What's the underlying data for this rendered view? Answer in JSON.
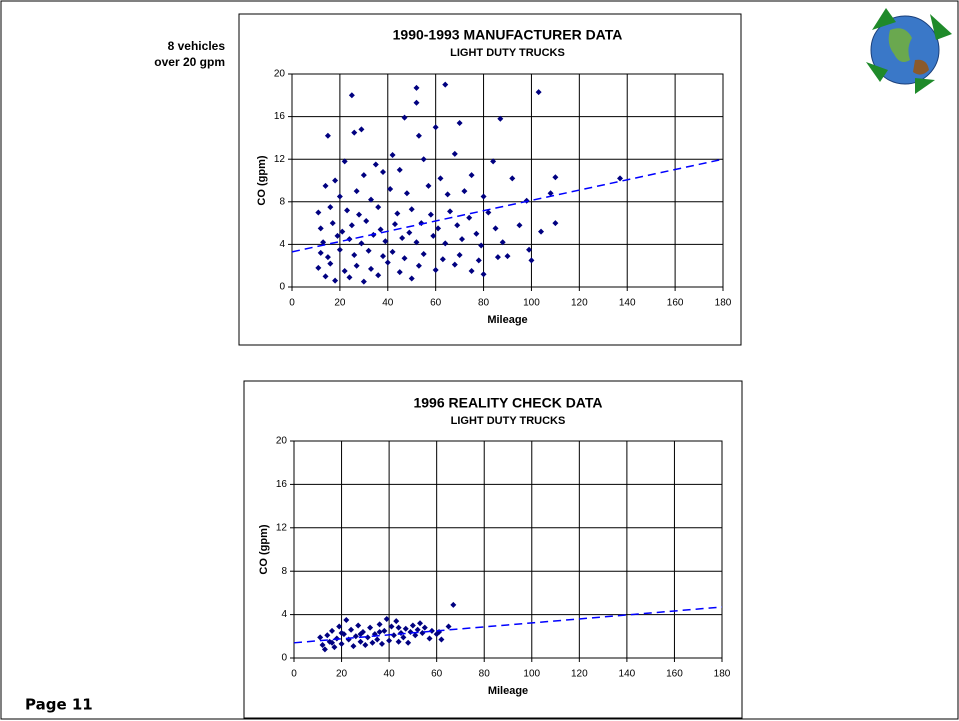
{
  "page": "Page 11",
  "annotation": [
    "8 vehicles",
    "over 20 gpm"
  ],
  "chart_data": [
    {
      "type": "scatter",
      "title": "1990-1993 MANUFACTURER DATA",
      "subtitle": "LIGHT DUTY TRUCKS",
      "x_label": "Mileage",
      "y_label": "CO (gpm)",
      "color": "#000080",
      "grid": true,
      "xlim": [
        0,
        180
      ],
      "ylim": [
        0,
        20
      ],
      "xticks": [
        0,
        20,
        40,
        60,
        80,
        100,
        120,
        140,
        160,
        180
      ],
      "yticks": [
        0,
        4,
        8,
        12,
        16,
        20
      ],
      "x": [
        25,
        52,
        52,
        64,
        103,
        87,
        70,
        47,
        15,
        29,
        60,
        26,
        53,
        42,
        35,
        55,
        68,
        84,
        22,
        45,
        18,
        30,
        38,
        62,
        75,
        92,
        110,
        137,
        108,
        14,
        20,
        27,
        33,
        41,
        48,
        57,
        65,
        72,
        80,
        98,
        11,
        16,
        23,
        28,
        36,
        44,
        50,
        58,
        66,
        74,
        82,
        95,
        104,
        110,
        12,
        17,
        21,
        25,
        31,
        37,
        43,
        49,
        54,
        61,
        69,
        77,
        85,
        13,
        19,
        24,
        29,
        34,
        39,
        46,
        52,
        59,
        64,
        71,
        79,
        88,
        99,
        12,
        15,
        20,
        26,
        32,
        38,
        42,
        47,
        55,
        63,
        70,
        78,
        86,
        100,
        11,
        16,
        22,
        27,
        33,
        40,
        45,
        53,
        60,
        68,
        80,
        14,
        18,
        24,
        30,
        36,
        50,
        75,
        90
      ],
      "y": [
        18,
        18.7,
        17.3,
        19,
        18.3,
        15.8,
        15.4,
        15.9,
        14.2,
        14.8,
        15,
        14.5,
        14.2,
        12.4,
        11.5,
        12,
        12.5,
        11.8,
        11.8,
        11,
        10,
        10.5,
        10.8,
        10.2,
        10.5,
        10.2,
        10.3,
        10.2,
        8.8,
        9.5,
        8.5,
        9,
        8.2,
        9.2,
        8.8,
        9.5,
        8.7,
        9,
        8.5,
        8.1,
        7,
        7.5,
        7.2,
        6.8,
        7.5,
        6.9,
        7.3,
        6.8,
        7.1,
        6.5,
        7,
        5.8,
        5.2,
        6,
        5.5,
        6,
        5.2,
        5.8,
        6.2,
        5.4,
        5.9,
        5.1,
        6,
        5.5,
        5.8,
        5,
        5.5,
        4.2,
        4.8,
        4.5,
        4.1,
        4.9,
        4.3,
        4.6,
        4.2,
        4.8,
        4.1,
        4.5,
        3.9,
        4.2,
        3.5,
        3.2,
        2.8,
        3.5,
        3,
        3.4,
        2.9,
        3.3,
        2.7,
        3.1,
        2.6,
        3,
        2.5,
        2.8,
        2.5,
        1.8,
        2.2,
        1.5,
        2,
        1.7,
        2.3,
        1.4,
        2,
        1.6,
        2.1,
        1.2,
        1,
        0.6,
        0.9,
        0.5,
        1.1,
        0.8,
        1.5,
        2.9
      ],
      "trend": {
        "x": [
          0,
          180
        ],
        "y": [
          3.3,
          12
        ]
      }
    },
    {
      "type": "scatter",
      "title": "1996 REALITY CHECK DATA",
      "subtitle": "LIGHT DUTY TRUCKS",
      "x_label": "Mileage",
      "y_label": "CO (gpm)",
      "color": "#000080",
      "grid": true,
      "xlim": [
        0,
        180
      ],
      "ylim": [
        0,
        20
      ],
      "xticks": [
        0,
        20,
        40,
        60,
        80,
        100,
        120,
        140,
        160,
        180
      ],
      "yticks": [
        0,
        4,
        8,
        12,
        16,
        20
      ],
      "x": [
        11,
        12,
        13,
        14,
        15,
        16,
        17,
        18,
        19,
        20,
        21,
        22,
        23,
        24,
        25,
        26,
        27,
        28,
        29,
        30,
        31,
        32,
        33,
        34,
        35,
        36,
        37,
        38,
        39,
        40,
        41,
        42,
        43,
        44,
        45,
        46,
        47,
        48,
        49,
        50,
        51,
        52,
        53,
        54,
        55,
        57,
        58,
        60,
        62,
        65,
        67,
        61,
        44,
        36,
        28,
        20,
        16
      ],
      "y": [
        1.9,
        1.2,
        0.8,
        2.1,
        1.5,
        2.5,
        1,
        1.8,
        2.9,
        1.3,
        2.2,
        3.5,
        1.7,
        2.6,
        1.1,
        2,
        3,
        1.5,
        2.4,
        1.2,
        1.9,
        2.8,
        1.4,
        2.2,
        1.7,
        3.1,
        1.3,
        2.5,
        3.6,
        1.6,
        2.9,
        2.1,
        3.4,
        1.5,
        2.3,
        1.9,
        2.7,
        1.4,
        2.4,
        3,
        2.1,
        2.6,
        3.2,
        2.3,
        2.8,
        1.8,
        2.5,
        2.2,
        1.7,
        2.9,
        4.9,
        2.4,
        2.8,
        2.4,
        2.2,
        2.3,
        1.4
      ],
      "trend": {
        "x": [
          0,
          180
        ],
        "y": [
          1.4,
          4.7
        ]
      }
    }
  ]
}
